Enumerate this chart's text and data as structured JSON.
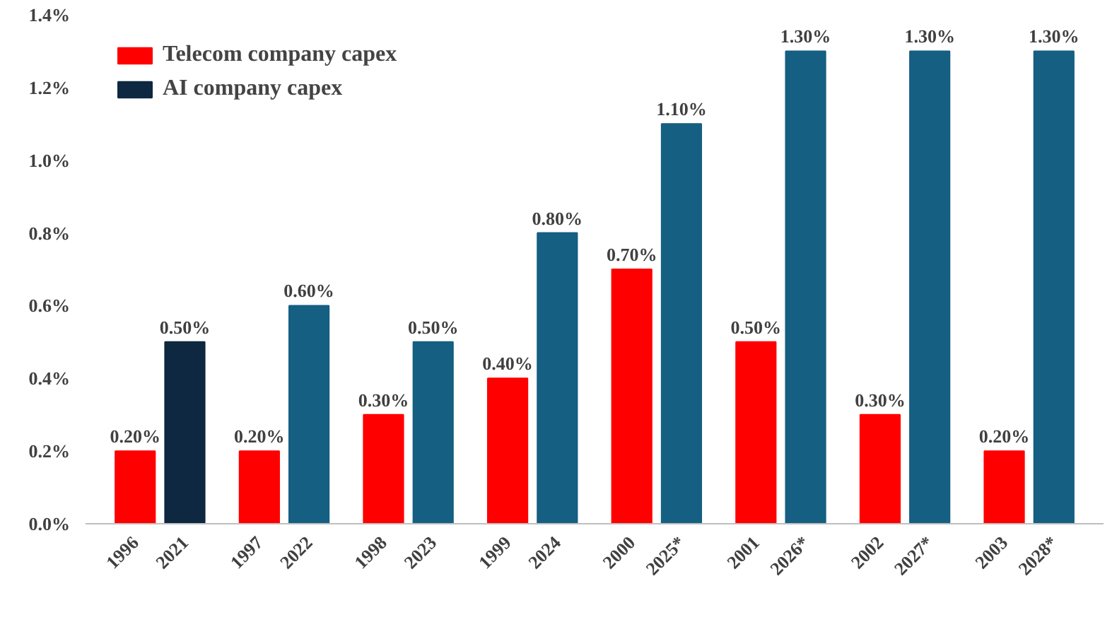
{
  "chart_data": {
    "type": "bar",
    "categories": [
      "1996",
      "2021",
      "1997",
      "2022",
      "1998",
      "2023",
      "1999",
      "2024",
      "2000",
      "2025*",
      "2001",
      "2026*",
      "2002",
      "2027*",
      "2003",
      "2028*"
    ],
    "series": [
      {
        "name": "Telecom company capex",
        "color": "#ff0000",
        "values": [
          0.2,
          null,
          0.2,
          null,
          0.3,
          null,
          0.4,
          null,
          0.7,
          null,
          0.5,
          null,
          0.3,
          null,
          0.2,
          null
        ],
        "value_labels": [
          "0.20%",
          null,
          "0.20%",
          null,
          "0.30%",
          null,
          "0.40%",
          null,
          "0.70%",
          null,
          "0.50%",
          null,
          "0.30%",
          null,
          "0.20%",
          null
        ]
      },
      {
        "name": "AI company capex",
        "color": "#0d2840",
        "colors": [
          null,
          "#0d2840",
          null,
          "#155f82",
          null,
          "#155f82",
          null,
          "#155f82",
          null,
          "#155f82",
          null,
          "#155f82",
          null,
          "#155f82",
          null,
          "#155f82"
        ],
        "values": [
          null,
          0.5,
          null,
          0.6,
          null,
          0.5,
          null,
          0.8,
          null,
          1.1,
          null,
          1.3,
          null,
          1.3,
          null,
          1.3
        ],
        "value_labels": [
          null,
          "0.50%",
          null,
          "0.60%",
          null,
          "0.50%",
          null,
          "0.80%",
          null,
          "1.10%",
          null,
          "1.30%",
          null,
          "1.30%",
          null,
          "1.30%"
        ]
      }
    ],
    "ylim": [
      0,
      1.4
    ],
    "yticks": [
      {
        "value": 0,
        "label": "0.0%"
      },
      {
        "value": 0.2,
        "label": "0.2%"
      },
      {
        "value": 0.4,
        "label": "0.4%"
      },
      {
        "value": 0.6,
        "label": "0.6%"
      },
      {
        "value": 0.8,
        "label": "0.8%"
      },
      {
        "value": 1.0,
        "label": "1.0%"
      },
      {
        "value": 1.2,
        "label": "1.2%"
      },
      {
        "value": 1.4,
        "label": "1.4%"
      }
    ],
    "grid": false,
    "legend": "top left"
  }
}
